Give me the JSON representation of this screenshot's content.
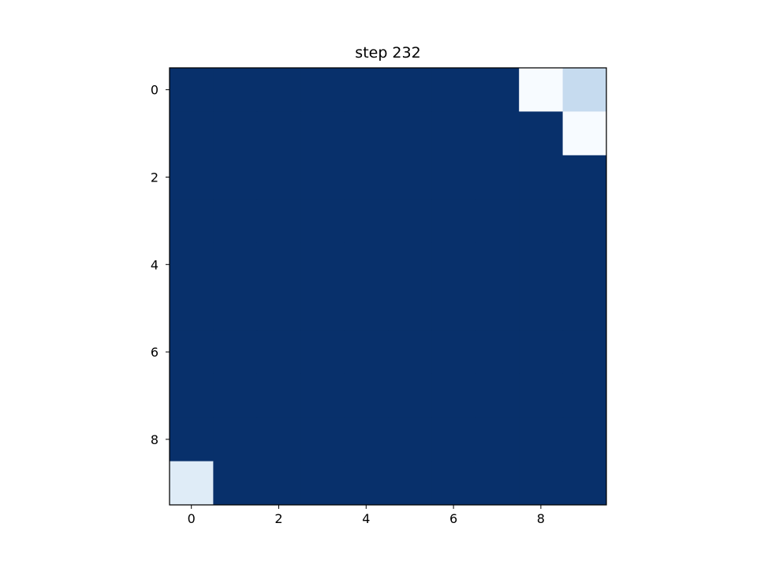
{
  "chart_data": {
    "type": "heatmap",
    "title": "step 232",
    "xlabel": "",
    "ylabel": "",
    "colormap": "Blues",
    "colors": {
      "low": "#f7fbff",
      "high": "#08306b",
      "axes": "#000000"
    },
    "value_range": [
      0,
      1
    ],
    "rows": 10,
    "cols": 10,
    "x_ticks": [
      0,
      2,
      4,
      6,
      8
    ],
    "y_ticks": [
      0,
      2,
      4,
      6,
      8
    ],
    "x_tick_labels": [
      "0",
      "2",
      "4",
      "6",
      "8"
    ],
    "y_tick_labels": [
      "0",
      "2",
      "4",
      "6",
      "8"
    ],
    "grid": false,
    "values": [
      [
        1,
        1,
        1,
        1,
        1,
        1,
        1,
        1,
        0.0,
        0.25
      ],
      [
        1,
        1,
        1,
        1,
        1,
        1,
        1,
        1,
        1,
        0.0
      ],
      [
        1,
        1,
        1,
        1,
        1,
        1,
        1,
        1,
        1,
        1
      ],
      [
        1,
        1,
        1,
        1,
        1,
        1,
        1,
        1,
        1,
        1
      ],
      [
        1,
        1,
        1,
        1,
        1,
        1,
        1,
        1,
        1,
        1
      ],
      [
        1,
        1,
        1,
        1,
        1,
        1,
        1,
        1,
        1,
        1
      ],
      [
        1,
        1,
        1,
        1,
        1,
        1,
        1,
        1,
        1,
        1
      ],
      [
        1,
        1,
        1,
        1,
        1,
        1,
        1,
        1,
        1,
        1
      ],
      [
        1,
        1,
        1,
        1,
        1,
        1,
        1,
        1,
        1,
        1
      ],
      [
        0.12,
        1,
        1,
        1,
        1,
        1,
        1,
        1,
        1,
        1
      ]
    ]
  }
}
